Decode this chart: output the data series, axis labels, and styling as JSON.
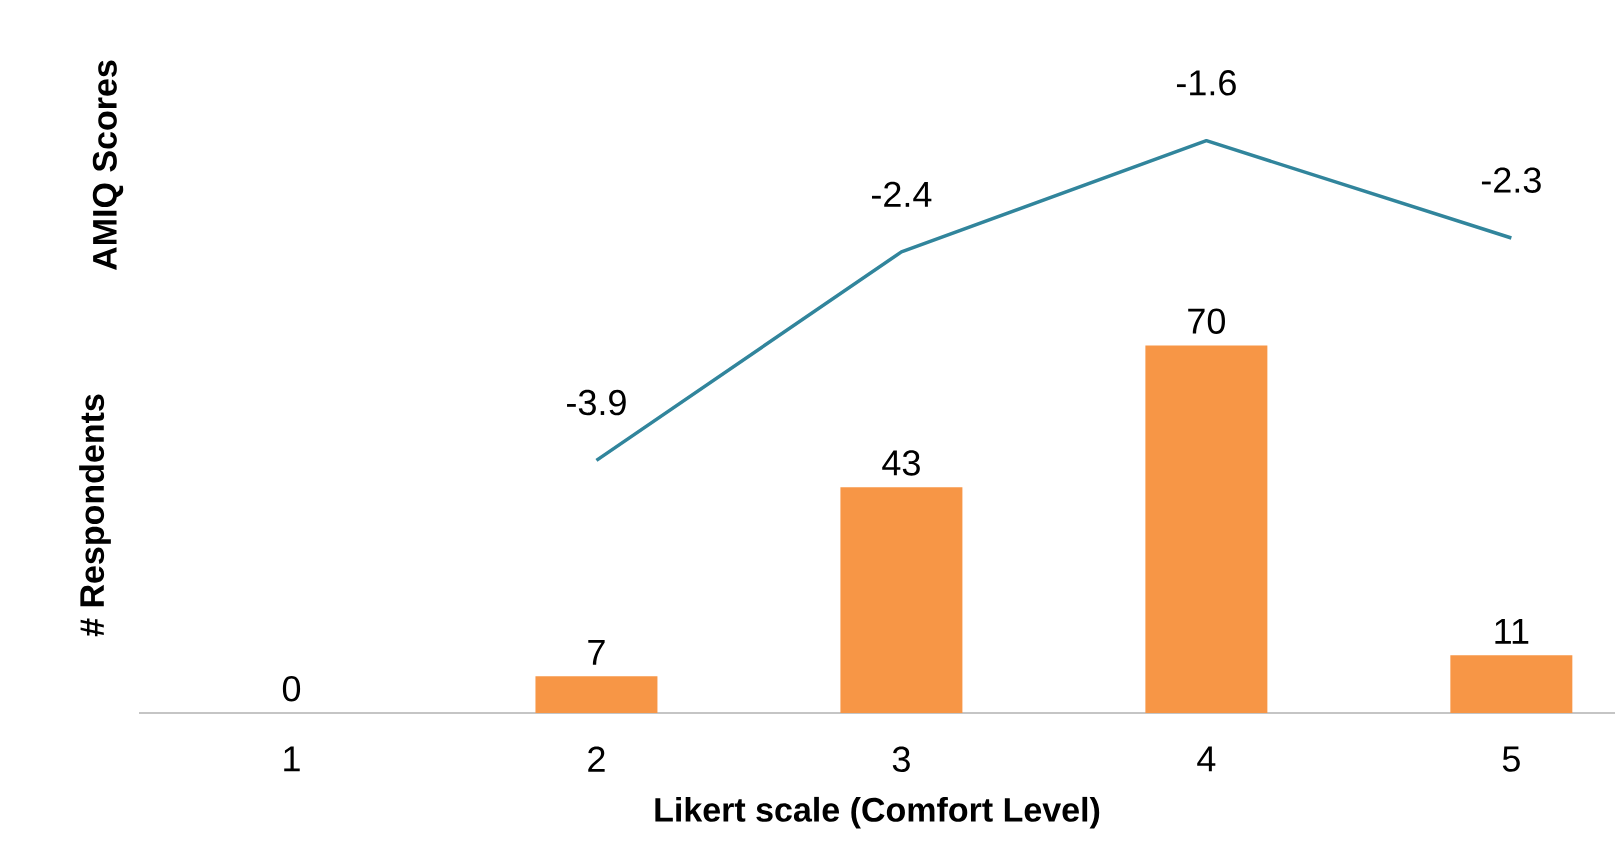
{
  "chart_data": {
    "type": "bar",
    "xlabel": "Likert scale (Comfort Level)",
    "ylabel": "# Respondents",
    "y2label": "AMIQ Scores",
    "categories": [
      "1",
      "2",
      "3",
      "4",
      "5"
    ],
    "data_labels": true,
    "tick_labels": "x",
    "series": [
      {
        "color": "#f79646",
        "values": [
          0,
          7,
          43,
          70,
          11
        ]
      },
      {
        "type": "line",
        "axis": "y2",
        "color": "#31859c",
        "values": [
          null,
          -3.9,
          -2.4,
          -1.6,
          -2.3
        ]
      }
    ]
  }
}
